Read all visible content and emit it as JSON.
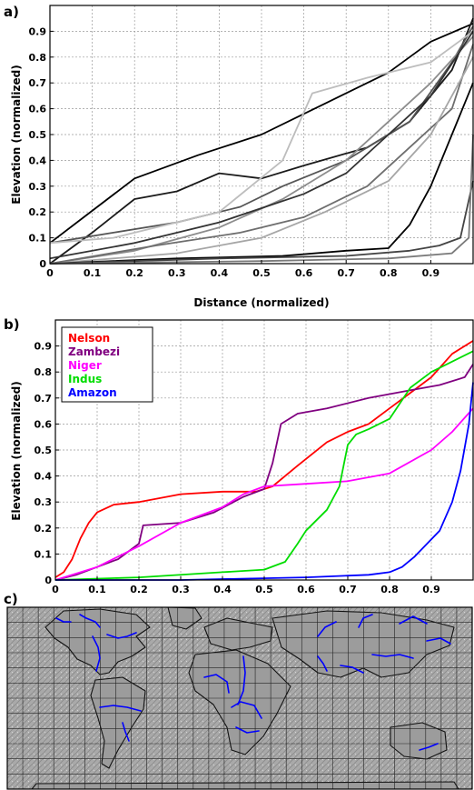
{
  "panels": {
    "a": {
      "tag": "a)"
    },
    "b": {
      "tag": "b)"
    },
    "c": {
      "tag": "c)"
    }
  },
  "chart_data": [
    {
      "type": "line",
      "panel": "a",
      "title": "",
      "xlabel": "Distance (normalized)",
      "ylabel": "Elevation (normalized)",
      "xlim": [
        0,
        1
      ],
      "ylim": [
        0,
        1
      ],
      "xticks": [
        "0",
        "0.1",
        "0.2",
        "0.3",
        "0.4",
        "0.5",
        "0.6",
        "0.7",
        "0.8",
        "0.9"
      ],
      "yticks": [
        "0",
        "0.1",
        "0.2",
        "0.3",
        "0.4",
        "0.5",
        "0.6",
        "0.7",
        "0.8",
        "0.9"
      ],
      "grid": true,
      "series": [
        {
          "color": "#000000",
          "x": [
            0,
            0.08,
            0.2,
            0.35,
            0.5,
            0.65,
            0.8,
            0.9,
            1.0
          ],
          "y": [
            0.08,
            0.18,
            0.33,
            0.42,
            0.5,
            0.62,
            0.74,
            0.86,
            0.93
          ]
        },
        {
          "color": "#1a1a1a",
          "x": [
            0,
            0.1,
            0.2,
            0.3,
            0.4,
            0.5,
            0.6,
            0.75,
            0.85,
            0.95,
            1.0
          ],
          "y": [
            0.0,
            0.12,
            0.25,
            0.28,
            0.35,
            0.33,
            0.38,
            0.45,
            0.55,
            0.75,
            0.95
          ]
        },
        {
          "color": "#555555",
          "x": [
            0,
            0.15,
            0.3,
            0.45,
            0.55,
            0.7,
            0.85,
            0.95,
            1.0
          ],
          "y": [
            0.08,
            0.12,
            0.16,
            0.22,
            0.3,
            0.4,
            0.55,
            0.78,
            0.92
          ]
        },
        {
          "color": "#bdbdbd",
          "x": [
            0,
            0.15,
            0.25,
            0.4,
            0.55,
            0.62,
            0.75,
            0.9,
            1.0
          ],
          "y": [
            0.08,
            0.1,
            0.14,
            0.2,
            0.4,
            0.66,
            0.72,
            0.78,
            0.9
          ]
        },
        {
          "color": "#8c8c8c",
          "x": [
            0,
            0.2,
            0.4,
            0.55,
            0.7,
            0.8,
            0.9,
            1.0
          ],
          "y": [
            0.0,
            0.05,
            0.14,
            0.25,
            0.4,
            0.55,
            0.7,
            0.88
          ]
        },
        {
          "color": "#333333",
          "x": [
            0,
            0.2,
            0.4,
            0.6,
            0.7,
            0.8,
            0.9,
            1.0
          ],
          "y": [
            0.02,
            0.08,
            0.16,
            0.27,
            0.35,
            0.5,
            0.65,
            0.9
          ]
        },
        {
          "color": "#6e6e6e",
          "x": [
            0,
            0.25,
            0.45,
            0.6,
            0.75,
            0.85,
            0.95,
            1.0
          ],
          "y": [
            0.0,
            0.07,
            0.12,
            0.18,
            0.3,
            0.45,
            0.6,
            0.85
          ]
        },
        {
          "color": "#a6a6a6",
          "x": [
            0,
            0.3,
            0.5,
            0.65,
            0.8,
            0.9,
            1.0
          ],
          "y": [
            0.0,
            0.04,
            0.1,
            0.2,
            0.32,
            0.5,
            0.8
          ]
        },
        {
          "color": "#000000",
          "x": [
            0,
            0.3,
            0.55,
            0.7,
            0.8,
            0.85,
            0.9,
            0.95,
            1.0
          ],
          "y": [
            0.0,
            0.02,
            0.03,
            0.05,
            0.06,
            0.15,
            0.3,
            0.5,
            0.7
          ]
        },
        {
          "color": "#444444",
          "x": [
            0,
            0.4,
            0.7,
            0.85,
            0.92,
            0.97,
            1.0
          ],
          "y": [
            0.0,
            0.02,
            0.03,
            0.05,
            0.07,
            0.1,
            0.32
          ]
        },
        {
          "color": "#7a7a7a",
          "x": [
            0,
            0.5,
            0.8,
            0.95,
            0.99,
            1.0
          ],
          "y": [
            0.0,
            0.01,
            0.02,
            0.04,
            0.1,
            0.5
          ]
        }
      ]
    },
    {
      "type": "line",
      "panel": "b",
      "title": "",
      "xlabel": "",
      "ylabel": "Elevation (normalized)",
      "xlim": [
        0,
        1
      ],
      "ylim": [
        0,
        1
      ],
      "xticks": [
        "0",
        "0.1",
        "0.2",
        "0.3",
        "0.4",
        "0.5",
        "0.6",
        "0.7",
        "0.8",
        "0.9"
      ],
      "yticks": [
        "0",
        "0.1",
        "0.2",
        "0.3",
        "0.4",
        "0.5",
        "0.6",
        "0.7",
        "0.8",
        "0.9"
      ],
      "grid": true,
      "legend_position": "top-left",
      "series": [
        {
          "name": "Nelson",
          "color": "#ff0000",
          "x": [
            0,
            0.02,
            0.04,
            0.06,
            0.08,
            0.1,
            0.14,
            0.2,
            0.3,
            0.4,
            0.48,
            0.52,
            0.58,
            0.65,
            0.7,
            0.75,
            0.8,
            0.85,
            0.9,
            0.95,
            1.0
          ],
          "y": [
            0.01,
            0.03,
            0.08,
            0.16,
            0.22,
            0.26,
            0.29,
            0.3,
            0.33,
            0.34,
            0.34,
            0.36,
            0.44,
            0.53,
            0.57,
            0.6,
            0.66,
            0.72,
            0.78,
            0.87,
            0.92
          ]
        },
        {
          "name": "Zambezi",
          "color": "#800080",
          "x": [
            0,
            0.05,
            0.1,
            0.15,
            0.2,
            0.21,
            0.3,
            0.38,
            0.45,
            0.5,
            0.52,
            0.54,
            0.58,
            0.65,
            0.75,
            0.85,
            0.92,
            0.98,
            1.0
          ],
          "y": [
            0.0,
            0.02,
            0.05,
            0.08,
            0.14,
            0.21,
            0.22,
            0.26,
            0.32,
            0.35,
            0.45,
            0.6,
            0.64,
            0.66,
            0.7,
            0.73,
            0.75,
            0.78,
            0.83
          ]
        },
        {
          "name": "Niger",
          "color": "#ff00ff",
          "x": [
            0,
            0.1,
            0.2,
            0.3,
            0.4,
            0.45,
            0.5,
            0.6,
            0.7,
            0.8,
            0.9,
            0.95,
            1.0
          ],
          "y": [
            0.0,
            0.05,
            0.13,
            0.22,
            0.28,
            0.33,
            0.36,
            0.37,
            0.38,
            0.41,
            0.5,
            0.57,
            0.66
          ]
        },
        {
          "name": "Indus",
          "color": "#00dd00",
          "x": [
            0,
            0.2,
            0.4,
            0.5,
            0.55,
            0.58,
            0.6,
            0.65,
            0.68,
            0.7,
            0.72,
            0.75,
            0.8,
            0.85,
            0.9,
            1.0
          ],
          "y": [
            0.0,
            0.01,
            0.03,
            0.04,
            0.07,
            0.14,
            0.19,
            0.27,
            0.36,
            0.52,
            0.56,
            0.58,
            0.62,
            0.74,
            0.8,
            0.88
          ]
        },
        {
          "name": "Amazon",
          "color": "#0000ff",
          "x": [
            0,
            0.3,
            0.6,
            0.75,
            0.8,
            0.83,
            0.86,
            0.89,
            0.92,
            0.95,
            0.97,
            0.99,
            1.0
          ],
          "y": [
            0.0,
            0.0,
            0.01,
            0.02,
            0.03,
            0.05,
            0.09,
            0.14,
            0.19,
            0.3,
            0.42,
            0.6,
            0.76
          ]
        }
      ]
    }
  ],
  "map": {
    "type": "map",
    "panel": "c",
    "grid_columns": 30,
    "grid_rows": 12,
    "river_color": "#0000ff"
  }
}
